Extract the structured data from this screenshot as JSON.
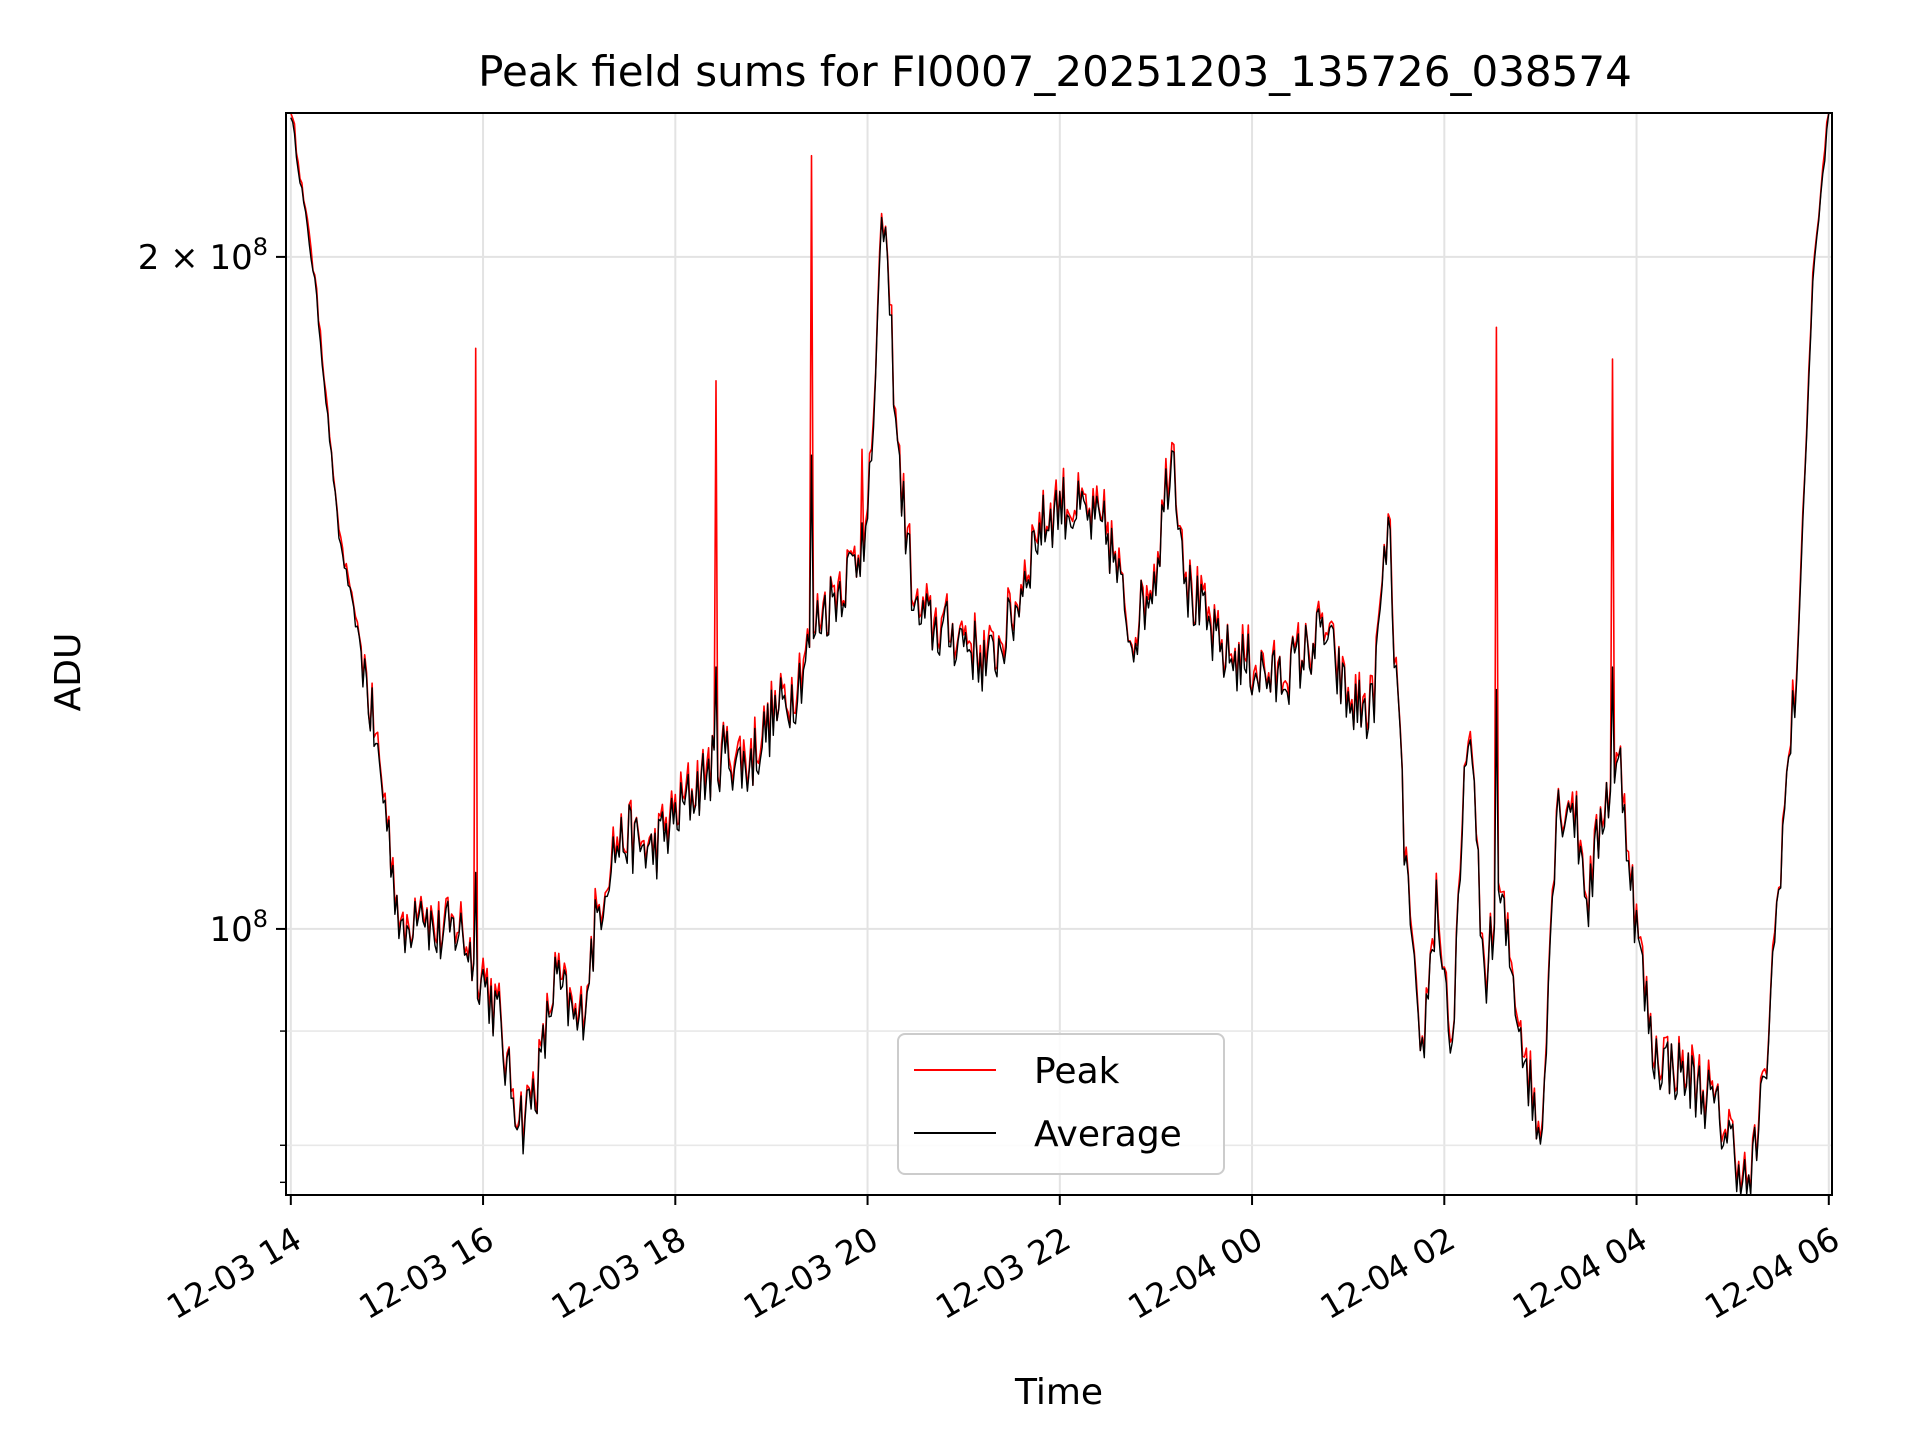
{
  "chart_data": {
    "type": "line",
    "title": "Peak field sums for FI0007_20251203_135726_038574",
    "xlabel": "Time",
    "ylabel": "ADU",
    "x_range": [
      "12-03 13:57",
      "12-04 06:02"
    ],
    "ylim": [
      76000000,
      232000000
    ],
    "yscale": "log",
    "grid": true,
    "legend_position": "lower center",
    "x_ticks": [
      "12-03 14",
      "12-03 16",
      "12-03 18",
      "12-03 20",
      "12-03 22",
      "12-04 00",
      "12-04 02",
      "12-04 04",
      "12-04 06"
    ],
    "y_ticks": [
      {
        "value": 200000000,
        "label_base": "2 × 10",
        "label_exp": "8"
      },
      {
        "value": 100000000,
        "label_base": "10",
        "label_exp": "8"
      }
    ],
    "y_minor_ticks": [
      90000000,
      80000000
    ],
    "series": [
      {
        "name": "Peak",
        "color": "#ff0000"
      },
      {
        "name": "Average",
        "color": "#000000"
      }
    ],
    "average_points": [
      [
        "12-03 14:00",
        232000000
      ],
      [
        "12-03 14:15",
        195000000
      ],
      [
        "12-03 14:30",
        150000000
      ],
      [
        "12-03 14:45",
        132000000
      ],
      [
        "12-03 15:00",
        112000000
      ],
      [
        "12-03 15:10",
        98000000
      ],
      [
        "12-03 15:20",
        104000000
      ],
      [
        "12-03 15:30",
        99000000
      ],
      [
        "12-03 15:45",
        100000000
      ],
      [
        "12-03 16:00",
        95000000
      ],
      [
        "12-03 16:10",
        91000000
      ],
      [
        "12-03 16:15",
        86000000
      ],
      [
        "12-03 16:25",
        82000000
      ],
      [
        "12-03 16:35",
        86000000
      ],
      [
        "12-03 16:45",
        95000000
      ],
      [
        "12-03 17:00",
        90000000
      ],
      [
        "12-03 17:10",
        100000000
      ],
      [
        "12-03 17:20",
        108000000
      ],
      [
        "12-03 17:30",
        110000000
      ],
      [
        "12-03 17:45",
        108000000
      ],
      [
        "12-03 18:00",
        112000000
      ],
      [
        "12-03 18:15",
        116000000
      ],
      [
        "12-03 18:30",
        120000000
      ],
      [
        "12-03 18:45",
        118000000
      ],
      [
        "12-03 19:00",
        124000000
      ],
      [
        "12-03 19:15",
        128000000
      ],
      [
        "12-03 19:25",
        135000000
      ],
      [
        "12-03 19:30",
        138000000
      ],
      [
        "12-03 19:45",
        143000000
      ],
      [
        "12-03 20:00",
        150000000
      ],
      [
        "12-03 20:10",
        210000000
      ],
      [
        "12-03 20:20",
        160000000
      ],
      [
        "12-03 20:30",
        138000000
      ],
      [
        "12-03 20:45",
        136000000
      ],
      [
        "12-03 21:00",
        135000000
      ],
      [
        "12-03 21:15",
        131000000
      ],
      [
        "12-03 21:30",
        137000000
      ],
      [
        "12-03 21:45",
        150000000
      ],
      [
        "12-03 22:00",
        155000000
      ],
      [
        "12-03 22:15",
        153000000
      ],
      [
        "12-03 22:30",
        150000000
      ],
      [
        "12-03 22:45",
        135000000
      ],
      [
        "12-03 23:00",
        145000000
      ],
      [
        "12-03 23:10",
        165000000
      ],
      [
        "12-03 23:20",
        142000000
      ],
      [
        "12-03 23:40",
        133000000
      ],
      [
        "12-04 00:00",
        131000000
      ],
      [
        "12-04 00:15",
        129000000
      ],
      [
        "12-04 00:30",
        132000000
      ],
      [
        "12-04 00:45",
        136000000
      ],
      [
        "12-04 01:00",
        126000000
      ],
      [
        "12-04 01:15",
        125000000
      ],
      [
        "12-04 01:25",
        152000000
      ],
      [
        "12-04 01:35",
        110000000
      ],
      [
        "12-04 01:45",
        86000000
      ],
      [
        "12-04 01:55",
        103000000
      ],
      [
        "12-04 02:05",
        88000000
      ],
      [
        "12-04 02:15",
        125000000
      ],
      [
        "12-04 02:25",
        95000000
      ],
      [
        "12-04 02:35",
        103000000
      ],
      [
        "12-04 02:50",
        88000000
      ],
      [
        "12-04 03:00",
        80000000
      ],
      [
        "12-04 03:10",
        113000000
      ],
      [
        "12-04 03:20",
        114000000
      ],
      [
        "12-04 03:30",
        103000000
      ],
      [
        "12-04 03:40",
        114000000
      ],
      [
        "12-04 03:50",
        118000000
      ],
      [
        "12-04 04:00",
        100000000
      ],
      [
        "12-04 04:10",
        88000000
      ],
      [
        "12-04 04:30",
        86000000
      ],
      [
        "12-04 04:45",
        84000000
      ],
      [
        "12-04 05:00",
        80000000
      ],
      [
        "12-04 05:10",
        76000000
      ],
      [
        "12-04 05:20",
        85000000
      ],
      [
        "12-04 05:30",
        108000000
      ],
      [
        "12-04 05:40",
        130000000
      ],
      [
        "12-04 05:50",
        195000000
      ],
      [
        "12-04 06:00",
        232000000
      ]
    ],
    "peak_spikes": [
      {
        "time": "12-03 15:55",
        "peak": 182000000,
        "average": 106000000
      },
      {
        "time": "12-03 18:25",
        "peak": 176000000,
        "average": 131000000
      },
      {
        "time": "12-03 19:25",
        "peak": 222000000,
        "average": 163000000
      },
      {
        "time": "12-03 19:57",
        "peak": 164000000,
        "average": 152000000
      },
      {
        "time": "12-04 02:32",
        "peak": 186000000,
        "average": 128000000
      },
      {
        "time": "12-04 03:45",
        "peak": 180000000,
        "average": 131000000
      }
    ]
  }
}
